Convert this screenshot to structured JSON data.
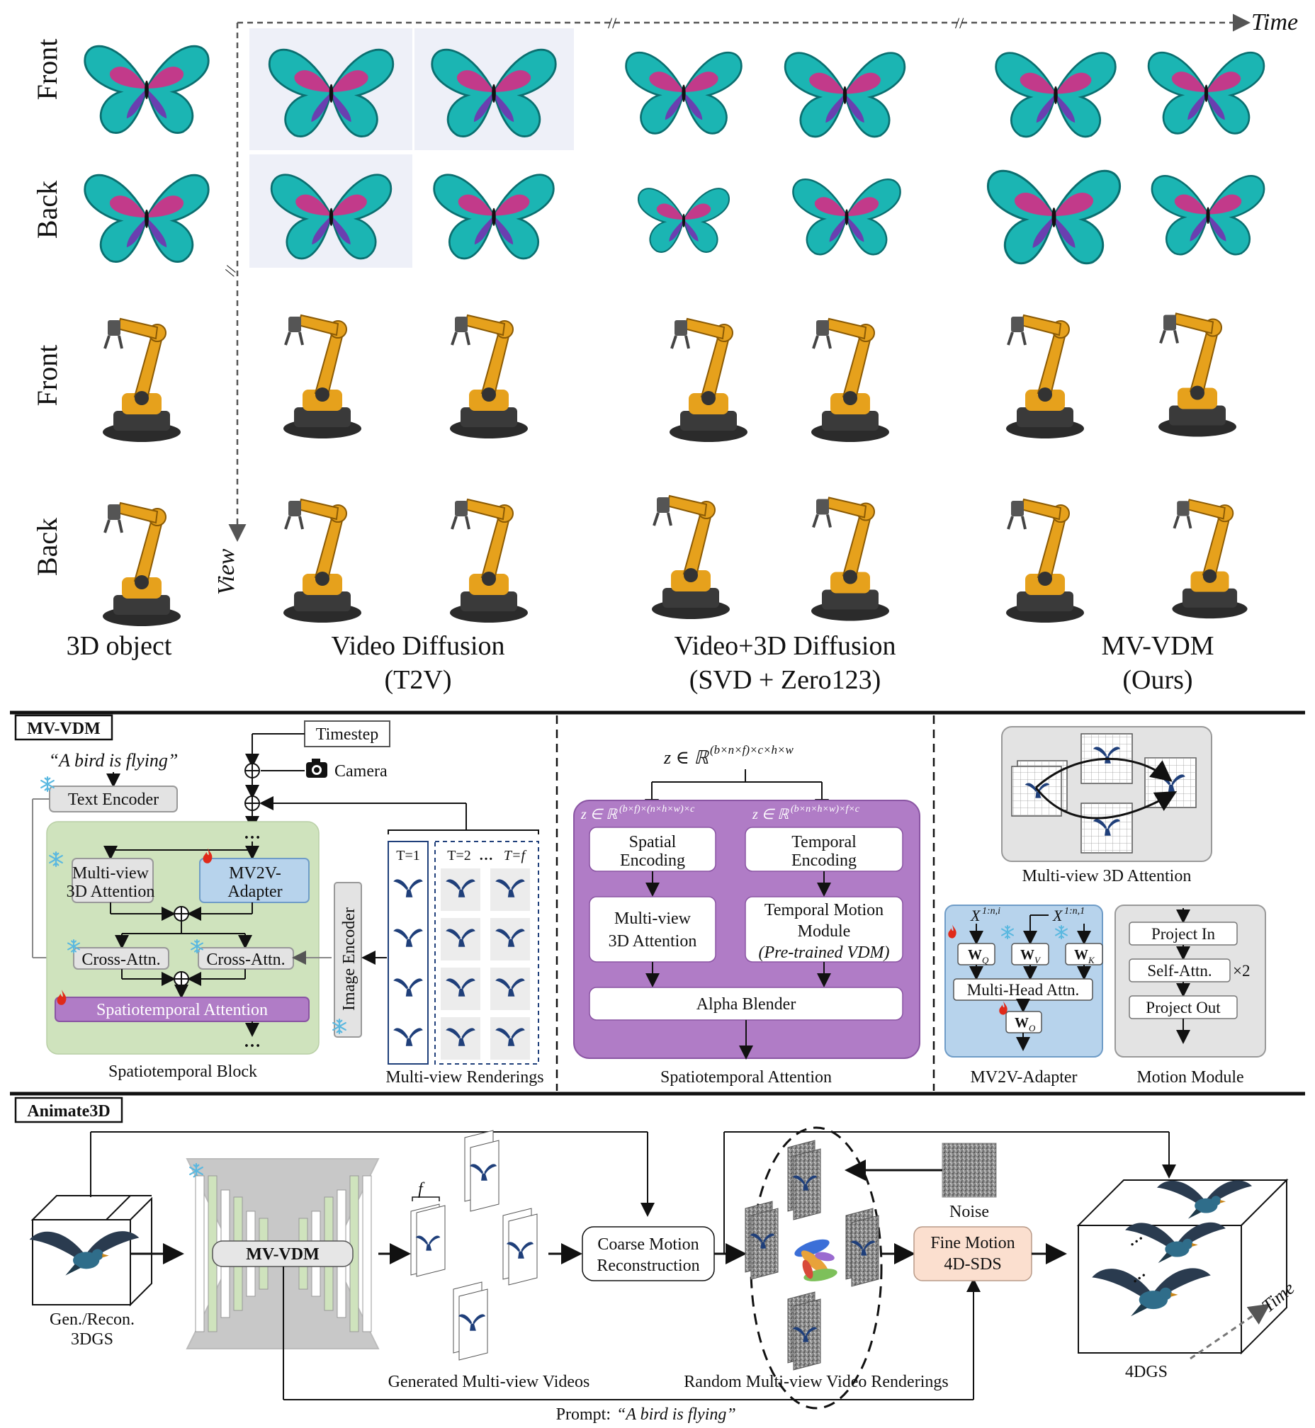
{
  "top": {
    "axes": {
      "time": "Time",
      "view": "View"
    },
    "row_labels": [
      "Front",
      "Back",
      "Front",
      "Back"
    ],
    "columns": [
      {
        "line1": "3D object",
        "line2": ""
      },
      {
        "line1": "Video Diffusion",
        "line2": "(T2V)"
      },
      {
        "line1": "Video+3D Diffusion",
        "line2": "(SVD + Zero123)"
      },
      {
        "line1": "MV-VDM",
        "line2": "(Ours)"
      }
    ]
  },
  "mvvdm": {
    "title": "MV-VDM",
    "prompt": "“A bird is flying”",
    "timestep": "Timestep",
    "camera": "Camera",
    "text_encoder": "Text Encoder",
    "mv3d_attn": [
      "Multi-view",
      "3D Attention"
    ],
    "adapter": [
      "MV2V-",
      "Adapter"
    ],
    "cross_attn_1": "Cross-Attn.",
    "cross_attn_2": "Cross-Attn.",
    "st_attn": "Spatiotemporal Attention",
    "st_block_caption": "Spatiotemporal Block",
    "image_encoder": "Image Encoder",
    "renderings_caption": "Multi-view Renderings",
    "t1": "T=1",
    "t2": "T=2",
    "tf": "T=f",
    "ellipsis": "…"
  },
  "sta": {
    "z_top": "z ∈ ℝ",
    "z_top_sup": "(b×n×f)×c×h×w",
    "z_left": "z ∈ ℝ",
    "z_left_sup": "(b×f)×(n×h×w)×c",
    "z_right": "z ∈ ℝ",
    "z_right_sup": "(b×n×h×w)×f×c",
    "spatial": [
      "Spatial",
      "Encoding"
    ],
    "temporal": [
      "Temporal",
      "Encoding"
    ],
    "mv3d": [
      "Multi-view",
      "3D Attention"
    ],
    "motion": [
      "Temporal Motion",
      "Module",
      "(Pre-trained VDM)"
    ],
    "alpha": "Alpha Blender",
    "caption": "Spatiotemporal Attention"
  },
  "right": {
    "mv3d_caption": "Multi-view 3D Attention",
    "x_left": "X",
    "x_left_sup": "1:n,i",
    "x_right": "X",
    "x_right_sup": "1:n,1",
    "wq": "W",
    "wq_sub": "Q",
    "wv": "W",
    "wv_sub": "V",
    "wk": "W",
    "wk_sub": "K",
    "mha": "Multi-Head Attn.",
    "wo": "W",
    "wo_sub": "O",
    "adapter_caption": "MV2V-Adapter",
    "project_in": "Project In",
    "self_attn": "Self-Attn.",
    "times2": "×2",
    "project_out": "Project Out",
    "motion_caption": "Motion Module"
  },
  "animate": {
    "title": "Animate3D",
    "gen_recon": [
      "Gen./Recon.",
      "3DGS"
    ],
    "mvvdm": "MV-VDM",
    "f": "f",
    "gen_videos": "Generated Multi-view Videos",
    "coarse": [
      "Coarse Motion",
      "Reconstruction"
    ],
    "noise": "Noise",
    "fine": [
      "Fine Motion",
      "4D-SDS"
    ],
    "random_renderings": "Random Multi-view Video Renderings",
    "fourdgs": "4DGS",
    "time": "Time",
    "prompt_label": "Prompt:",
    "prompt": "“A bird is flying”"
  },
  "colors": {
    "green_block": "#cfe3bd",
    "blue_adapter": "#b7d3ec",
    "purple": "#b07cc6",
    "peach": "#fbdfcf",
    "gray_box": "#e3e3e3",
    "butterfly_teal": "#2fd4d0",
    "butterfly_magenta": "#c23a8a",
    "robot_orange": "#e6a11c",
    "bird_blue": "#1f3f7a",
    "fire": "#e02a1a",
    "snow": "#5ab8e0"
  }
}
